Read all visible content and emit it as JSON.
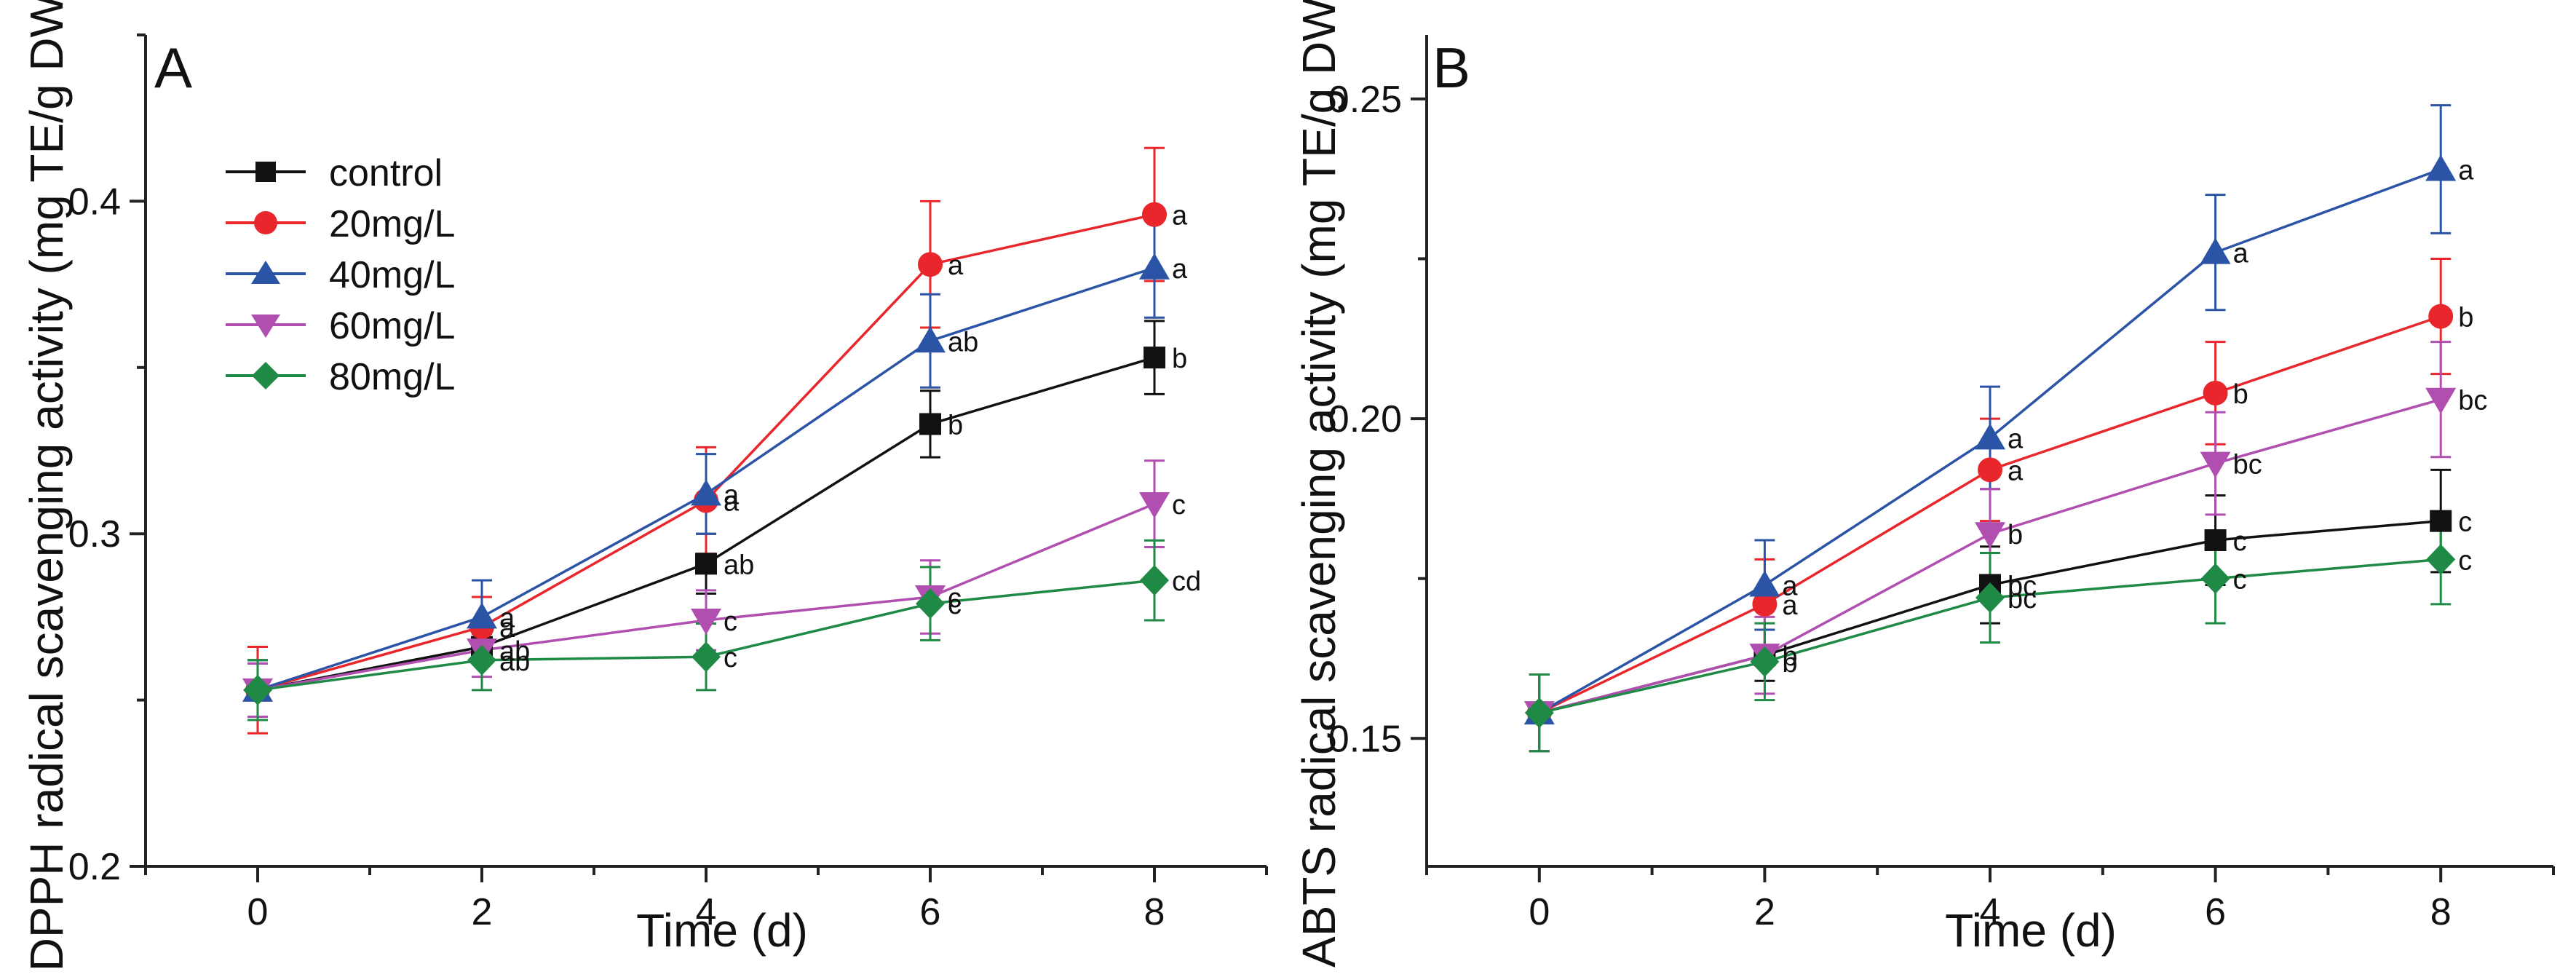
{
  "chart_data": [
    {
      "type": "line",
      "panel_label": "A",
      "xlabel": "Time (d)",
      "ylabel": "DPPH radical scavenging activity (mg TE/g DW)",
      "x": [
        0,
        2,
        4,
        6,
        8
      ],
      "xlim": [
        -1,
        9
      ],
      "ylim": [
        0.2,
        0.45
      ],
      "xticks": [
        "0",
        "2",
        "4",
        "6",
        "8"
      ],
      "yticks": [
        "0.2",
        "0.3",
        "0.4"
      ],
      "legend_position": "top-left",
      "series": [
        {
          "name": "control",
          "color": "#111111",
          "marker": "square",
          "values": [
            0.253,
            0.266,
            0.291,
            0.333,
            0.353
          ],
          "errors": [
            0.009,
            0.004,
            0.009,
            0.01,
            0.011
          ],
          "labels": [
            "",
            "",
            "ab",
            "b",
            "b"
          ]
        },
        {
          "name": "20mg/L",
          "color": "#e8262b",
          "marker": "circle",
          "values": [
            0.253,
            0.272,
            0.31,
            0.381,
            0.396
          ],
          "errors": [
            0.013,
            0.009,
            0.016,
            0.019,
            0.02
          ],
          "labels": [
            "",
            "a",
            "a",
            "a",
            "a"
          ]
        },
        {
          "name": "40mg/L",
          "color": "#2b53a6",
          "marker": "triangle-up",
          "values": [
            0.253,
            0.275,
            0.312,
            0.358,
            0.38
          ],
          "errors": [
            0.008,
            0.011,
            0.012,
            0.014,
            0.015
          ],
          "labels": [
            "",
            "a",
            "a",
            "ab",
            "a"
          ]
        },
        {
          "name": "60mg/L",
          "color": "#b04fb0",
          "marker": "triangle-down",
          "values": [
            0.253,
            0.265,
            0.274,
            0.281,
            0.309
          ],
          "errors": [
            0.008,
            0.008,
            0.009,
            0.011,
            0.013
          ],
          "labels": [
            "",
            "ab",
            "c",
            "c",
            "c"
          ]
        },
        {
          "name": "80mg/L",
          "color": "#1f8a46",
          "marker": "diamond",
          "values": [
            0.253,
            0.262,
            0.263,
            0.279,
            0.286
          ],
          "errors": [
            0.009,
            0.009,
            0.01,
            0.011,
            0.012
          ],
          "labels": [
            "",
            "ab",
            "c",
            "c",
            "cd"
          ]
        }
      ]
    },
    {
      "type": "line",
      "panel_label": "B",
      "xlabel": "Time (d)",
      "ylabel": "ABTS radical scavenging activity (mg TE/g DW)",
      "x": [
        0,
        2,
        4,
        6,
        8
      ],
      "xlim": [
        -1,
        9
      ],
      "ylim": [
        0.13,
        0.26
      ],
      "xticks": [
        "0",
        "2",
        "4",
        "6",
        "8"
      ],
      "yticks": [
        "0.15",
        "0.20",
        "0.25"
      ],
      "series": [
        {
          "name": "control",
          "color": "#111111",
          "marker": "square",
          "values": [
            0.154,
            0.163,
            0.174,
            0.181,
            0.184
          ],
          "errors": [
            0.006,
            0.004,
            0.006,
            0.007,
            0.008
          ],
          "labels": [
            "",
            "",
            "bc",
            "c",
            "c"
          ]
        },
        {
          "name": "20mg/L",
          "color": "#e8262b",
          "marker": "circle",
          "values": [
            0.154,
            0.171,
            0.192,
            0.204,
            0.216
          ],
          "errors": [
            0.006,
            0.007,
            0.008,
            0.008,
            0.009
          ],
          "labels": [
            "",
            "a",
            "a",
            "b",
            "b"
          ]
        },
        {
          "name": "40mg/L",
          "color": "#2b53a6",
          "marker": "triangle-up",
          "values": [
            0.154,
            0.174,
            0.197,
            0.226,
            0.239
          ],
          "errors": [
            0.006,
            0.007,
            0.008,
            0.009,
            0.01
          ],
          "labels": [
            "",
            "a",
            "a",
            "a",
            "a"
          ]
        },
        {
          "name": "60mg/L",
          "color": "#b04fb0",
          "marker": "triangle-down",
          "values": [
            0.154,
            0.163,
            0.182,
            0.193,
            0.203
          ],
          "errors": [
            0.006,
            0.006,
            0.007,
            0.008,
            0.009
          ],
          "labels": [
            "",
            "b",
            "b",
            "bc",
            "bc"
          ]
        },
        {
          "name": "80mg/L",
          "color": "#1f8a46",
          "marker": "diamond",
          "values": [
            0.154,
            0.162,
            0.172,
            0.175,
            0.178
          ],
          "errors": [
            0.006,
            0.006,
            0.007,
            0.007,
            0.007
          ],
          "labels": [
            "",
            "b",
            "bc",
            "c",
            "c"
          ]
        }
      ]
    }
  ]
}
